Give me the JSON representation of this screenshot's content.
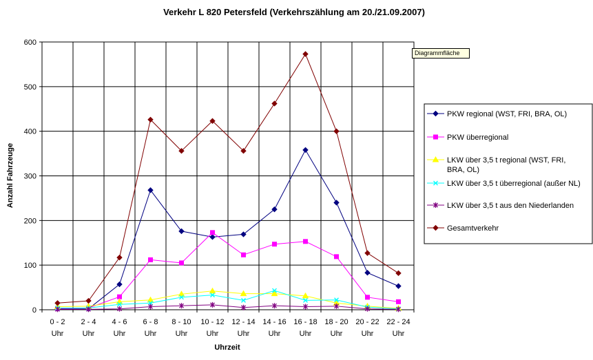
{
  "tooltip": "Diagrammfläche",
  "chart_data": {
    "type": "line",
    "title": "Verkehr L 820 Petersfeld (Verkehrszählung am 20./21.09.2007)",
    "xlabel": "Uhrzeit",
    "ylabel": "Anzahl Fahrzeuge",
    "ylim": [
      0,
      600
    ],
    "yticks": [
      0,
      100,
      200,
      300,
      400,
      500,
      600
    ],
    "grid": true,
    "legend_position": "right",
    "categories": [
      [
        "0 - 2",
        "Uhr"
      ],
      [
        "2 - 4",
        "Uhr"
      ],
      [
        "4 - 6",
        "Uhr"
      ],
      [
        "6 - 8",
        "Uhr"
      ],
      [
        "8 - 10",
        "Uhr"
      ],
      [
        "10 - 12",
        "Uhr"
      ],
      [
        "12 - 14",
        "Uhr"
      ],
      [
        "14 - 16",
        "Uhr"
      ],
      [
        "16 - 18",
        "Uhr"
      ],
      [
        "18 - 20",
        "Uhr"
      ],
      [
        "20 - 22",
        "Uhr"
      ],
      [
        "22 - 24",
        "Uhr"
      ]
    ],
    "series": [
      {
        "name": [
          "PKW regional (WST, FRI, BRA, OL)"
        ],
        "color": "#000080",
        "marker": "diamond",
        "values": [
          2,
          2,
          57,
          268,
          176,
          163,
          169,
          225,
          358,
          240,
          83,
          53
        ]
      },
      {
        "name": [
          "PKW überregional"
        ],
        "color": "#ff00ff",
        "marker": "square",
        "values": [
          3,
          4,
          29,
          112,
          105,
          173,
          123,
          147,
          153,
          119,
          28,
          18
        ]
      },
      {
        "name": [
          "LKW über 3,5 t regional (WST, FRI,",
          "BRA, OL)"
        ],
        "color": "#ffff00",
        "marker": "triangle",
        "values": [
          7,
          8,
          18,
          22,
          35,
          42,
          36,
          36,
          31,
          15,
          8,
          3
        ]
      },
      {
        "name": [
          "LKW über 3,5 t überregional (außer NL)"
        ],
        "color": "#00ffff",
        "marker": "x",
        "values": [
          4,
          4,
          12,
          15,
          28,
          33,
          21,
          43,
          21,
          22,
          6,
          2
        ]
      },
      {
        "name": [
          "LKW über 3,5 t aus den Niederlanden"
        ],
        "color": "#800080",
        "marker": "star",
        "values": [
          1,
          1,
          2,
          7,
          9,
          11,
          5,
          9,
          7,
          8,
          2,
          1
        ]
      },
      {
        "name": [
          "Gesamtverkehr"
        ],
        "color": "#800000",
        "marker": "diamond",
        "values": [
          15,
          20,
          117,
          426,
          356,
          423,
          356,
          462,
          573,
          400,
          127,
          82
        ]
      }
    ]
  }
}
